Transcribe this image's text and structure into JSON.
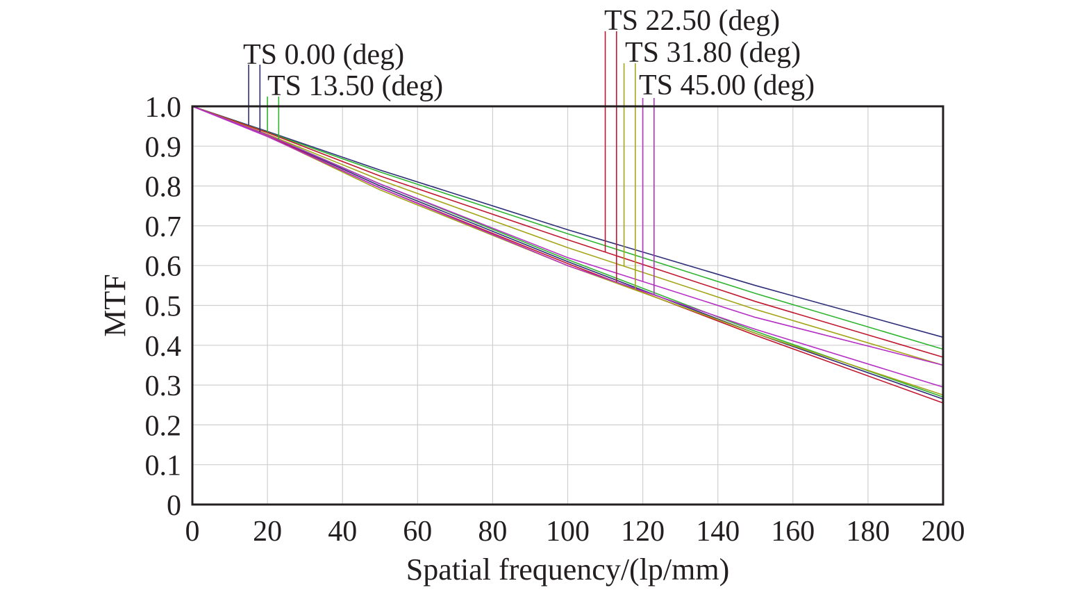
{
  "chart_data": {
    "type": "line",
    "title": "",
    "xlabel": "Spatial frequency/(lp/mm)",
    "ylabel": "MTF",
    "xlim": [
      0,
      200
    ],
    "ylim": [
      0,
      1.0
    ],
    "grid": true,
    "xticks": [
      0,
      20,
      40,
      60,
      80,
      100,
      120,
      140,
      160,
      180,
      200
    ],
    "xtick_labels": [
      "0",
      "20",
      "40",
      "60",
      "80",
      "100",
      "120",
      "140",
      "160",
      "180",
      "200"
    ],
    "yticks": [
      0,
      0.1,
      0.2,
      0.3,
      0.4,
      0.5,
      0.6,
      0.7,
      0.8,
      0.9,
      1.0
    ],
    "ytick_labels": [
      "0",
      "0.1",
      "0.2",
      "0.3",
      "0.4",
      "0.5",
      "0.6",
      "0.7",
      "0.8",
      "0.9",
      "1.0"
    ],
    "legend": [
      {
        "label": "TS 0.00 (deg)",
        "colors": [
          "#2e2e78",
          "#2e2e78"
        ],
        "marker_x": [
          15,
          18
        ]
      },
      {
        "label": "TS 13.50 (deg)",
        "colors": [
          "#2fb52f",
          "#2fb52f"
        ],
        "marker_x": [
          20,
          23
        ]
      },
      {
        "label": "TS 22.50 (deg)",
        "colors": [
          "#c0172e",
          "#c0172e"
        ],
        "marker_x": [
          110,
          113
        ]
      },
      {
        "label": "TS 31.80 (deg)",
        "colors": [
          "#a5a51a",
          "#a5a51a"
        ],
        "marker_x": [
          115,
          118
        ]
      },
      {
        "label": "TS 45.00 (deg)",
        "colors": [
          "#b52fc4",
          "#b52fc4"
        ],
        "marker_x": [
          120,
          123
        ]
      }
    ],
    "series": [
      {
        "name": "TS 0.00 (deg) T",
        "color": "#2e2e78",
        "x": [
          0,
          20,
          50,
          100,
          150,
          200
        ],
        "values": [
          1.0,
          0.937,
          0.84,
          0.69,
          0.55,
          0.42
        ]
      },
      {
        "name": "TS 0.00 (deg) S",
        "color": "#2e2e78",
        "x": [
          0,
          20,
          50,
          100,
          150,
          200
        ],
        "values": [
          1.0,
          0.928,
          0.8,
          0.61,
          0.43,
          0.265
        ]
      },
      {
        "name": "TS 13.50 (deg) T",
        "color": "#2fb52f",
        "x": [
          0,
          20,
          50,
          100,
          150,
          200
        ],
        "values": [
          1.0,
          0.935,
          0.835,
          0.68,
          0.53,
          0.39
        ]
      },
      {
        "name": "TS 13.50 (deg) S",
        "color": "#2fb52f",
        "x": [
          0,
          20,
          50,
          100,
          150,
          200
        ],
        "values": [
          1.0,
          0.929,
          0.805,
          0.615,
          0.435,
          0.27
        ]
      },
      {
        "name": "TS 22.50 (deg) T",
        "color": "#c0172e",
        "x": [
          0,
          20,
          50,
          100,
          150,
          200
        ],
        "values": [
          1.0,
          0.934,
          0.825,
          0.665,
          0.51,
          0.37
        ]
      },
      {
        "name": "TS 22.50 (deg) S",
        "color": "#c0172e",
        "x": [
          0,
          20,
          50,
          100,
          150,
          200
        ],
        "values": [
          1.0,
          0.926,
          0.795,
          0.605,
          0.425,
          0.255
        ]
      },
      {
        "name": "TS 31.80 (deg) T",
        "color": "#a5a51a",
        "x": [
          0,
          20,
          50,
          100,
          150,
          200
        ],
        "values": [
          1.0,
          0.93,
          0.815,
          0.645,
          0.49,
          0.35
        ]
      },
      {
        "name": "TS 31.80 (deg) S",
        "color": "#a5a51a",
        "x": [
          0,
          20,
          50,
          100,
          150,
          200
        ],
        "values": [
          1.0,
          0.925,
          0.79,
          0.6,
          0.43,
          0.275
        ]
      },
      {
        "name": "TS 45.00 (deg) T",
        "color": "#b52fc4",
        "x": [
          0,
          20,
          50,
          100,
          150,
          200
        ],
        "values": [
          1.0,
          0.928,
          0.805,
          0.62,
          0.47,
          0.35
        ]
      },
      {
        "name": "TS 45.00 (deg) S",
        "color": "#b52fc4",
        "x": [
          0,
          20,
          50,
          100,
          150,
          200
        ],
        "values": [
          1.0,
          0.924,
          0.795,
          0.6,
          0.44,
          0.295
        ]
      }
    ]
  }
}
